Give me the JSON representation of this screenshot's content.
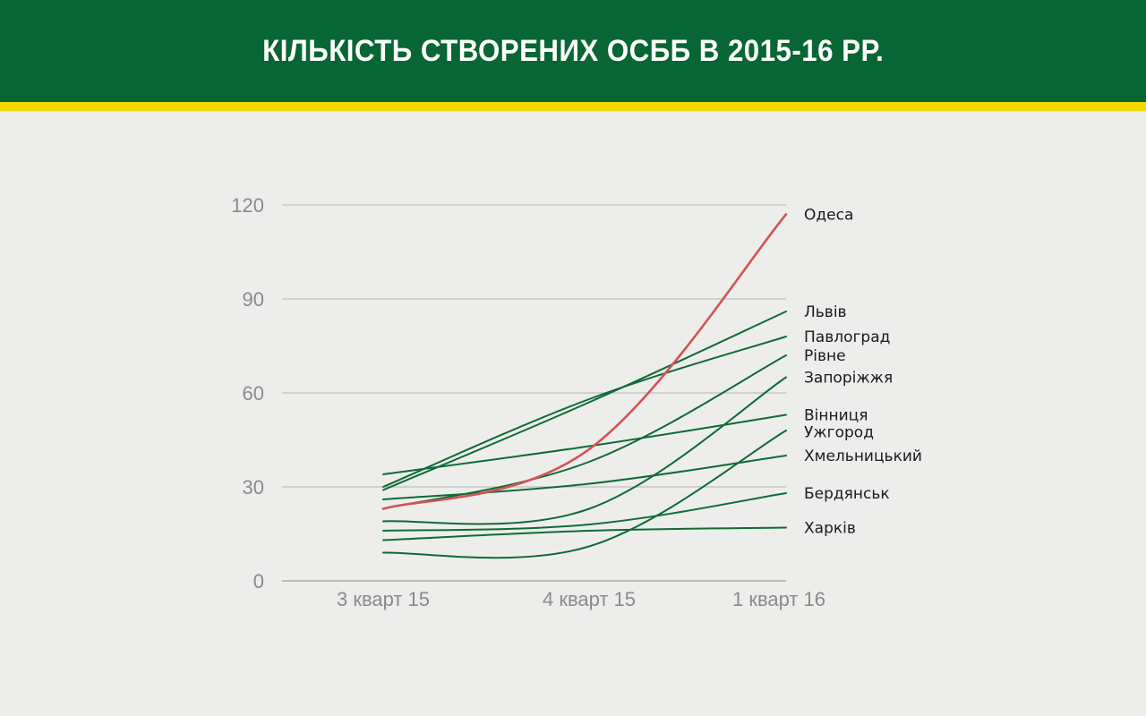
{
  "header": {
    "title": "КІЛЬКІСТЬ СТВОРЕНИХ ОСББ В 2015-16 РР."
  },
  "colors": {
    "header_bg": "#076633",
    "stripe": "#f5d800",
    "series_default": "#0e6b37",
    "series_highlight": "#d05356",
    "grid": "#b5b5b5"
  },
  "chart_data": {
    "type": "line",
    "title": "КІЛЬКІСТЬ СТВОРЕНИХ ОСББ В 2015-16 РР.",
    "xlabel": "",
    "ylabel": "",
    "x": [
      "3 кварт 15",
      "4 кварт 15",
      "1 кварт 16"
    ],
    "ylim": [
      0,
      120
    ],
    "yticks": [
      "0",
      "30",
      "60",
      "90",
      "120"
    ],
    "grid": true,
    "legend": "labels at line ends, right",
    "series": [
      {
        "name": "Одеса",
        "values": [
          23,
          42,
          117
        ],
        "color": "#d05356"
      },
      {
        "name": "Львів",
        "values": [
          29,
          57,
          86
        ],
        "color": "#0e6b37"
      },
      {
        "name": "Павлоград",
        "values": [
          30,
          58,
          78
        ],
        "color": "#0e6b37"
      },
      {
        "name": "Рівне",
        "values": [
          23,
          38,
          72
        ],
        "color": "#0e6b37"
      },
      {
        "name": "Запоріжжя",
        "values": [
          19,
          23,
          65
        ],
        "color": "#0e6b37"
      },
      {
        "name": "Вінниця",
        "values": [
          34,
          43,
          53
        ],
        "color": "#0e6b37"
      },
      {
        "name": "Ужгород",
        "values": [
          9,
          11,
          48
        ],
        "color": "#0e6b37"
      },
      {
        "name": "Хмельницький",
        "values": [
          26,
          31,
          40
        ],
        "color": "#0e6b37"
      },
      {
        "name": "Бердянськ",
        "values": [
          16,
          18,
          28
        ],
        "color": "#0e6b37"
      },
      {
        "name": "Харків",
        "values": [
          13,
          16,
          17
        ],
        "color": "#0e6b37"
      }
    ]
  }
}
